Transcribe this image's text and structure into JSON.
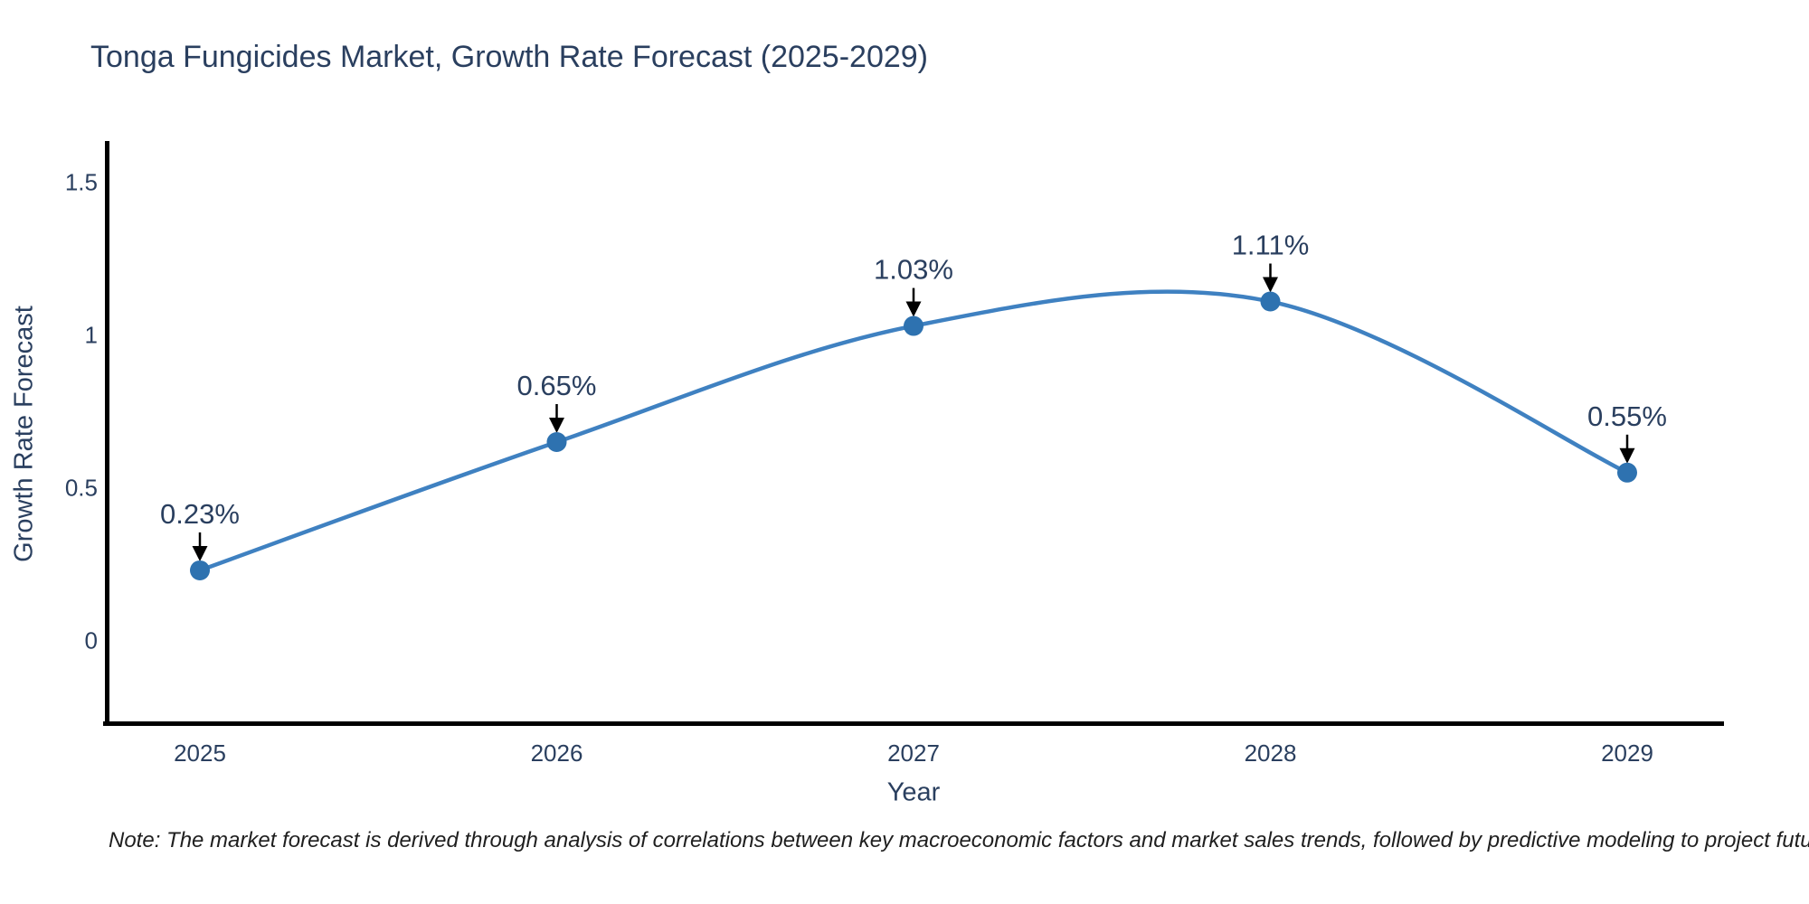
{
  "title": "Tonga Fungicides Market, Growth Rate Forecast (2025-2029)",
  "note": "Note: The market forecast is derived through analysis of correlations between key macroeconomic factors and market sales trends, followed by predictive modeling to project future sales",
  "chart_data": {
    "type": "line",
    "title": "Tonga Fungicides Market, Growth Rate Forecast (2025-2029)",
    "x": [
      2025,
      2026,
      2027,
      2028,
      2029
    ],
    "values": [
      0.23,
      0.65,
      1.03,
      1.11,
      0.55
    ],
    "point_labels": [
      "0.23%",
      "0.65%",
      "1.03%",
      "1.11%",
      "0.55%"
    ],
    "xtick_labels": [
      "2025",
      "2026",
      "2027",
      "2028",
      "2029"
    ],
    "ytick_values": [
      0,
      0.5,
      1,
      1.5
    ],
    "ytick_labels": [
      "0",
      "0.5",
      "1",
      "1.5"
    ],
    "xlabel": "Year",
    "ylabel": "Growth Rate Forecast",
    "ylim": [
      -0.28,
      1.63
    ],
    "grid": false,
    "legend_position": "none",
    "curve": "spline",
    "line_color": "#3f81c1",
    "marker_color": "#2e72b0",
    "annotation_arrow_color": "#000000",
    "axis_line_color": "#000000",
    "text_color": "#2a3f5f",
    "background_color": "#ffffff"
  }
}
